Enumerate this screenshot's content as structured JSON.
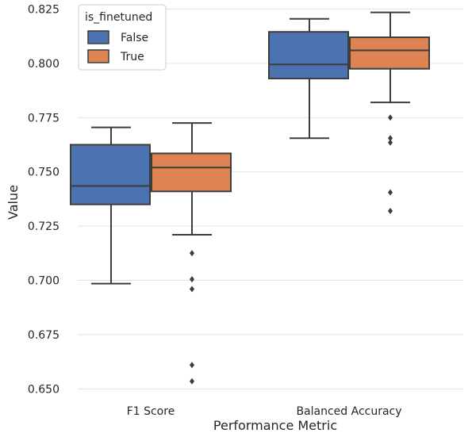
{
  "chart_data": {
    "type": "boxplot",
    "xlabel": "Performance Metric",
    "ylabel": "Value",
    "categories": [
      "F1 Score",
      "Balanced Accuracy"
    ],
    "ylim": [
      0.645,
      0.827
    ],
    "yticks": [
      "0.650",
      "0.675",
      "0.700",
      "0.725",
      "0.750",
      "0.775",
      "0.800",
      "0.825"
    ],
    "grid": "horizontal",
    "legend": {
      "title": "is_finetuned",
      "placement": "top-left"
    },
    "series": [
      {
        "name": "False",
        "color": "#4C72B0",
        "boxes": [
          {
            "category": "F1 Score",
            "whisker_low": 0.6985,
            "q1": 0.735,
            "median": 0.7435,
            "q3": 0.7625,
            "whisker_high": 0.7705,
            "outliers": []
          },
          {
            "category": "Balanced Accuracy",
            "whisker_low": 0.7655,
            "q1": 0.793,
            "median": 0.7995,
            "q3": 0.8145,
            "whisker_high": 0.8205,
            "outliers": []
          }
        ]
      },
      {
        "name": "True",
        "color": "#DD8452",
        "boxes": [
          {
            "category": "F1 Score",
            "whisker_low": 0.721,
            "q1": 0.741,
            "median": 0.752,
            "q3": 0.7585,
            "whisker_high": 0.7725,
            "outliers": [
              0.7125,
              0.7005,
              0.696,
              0.661,
              0.6535
            ]
          },
          {
            "category": "Balanced Accuracy",
            "whisker_low": 0.782,
            "q1": 0.7975,
            "median": 0.806,
            "q3": 0.812,
            "whisker_high": 0.8235,
            "outliers": [
              0.775,
              0.7655,
              0.7635,
              0.7405,
              0.732
            ]
          }
        ]
      }
    ]
  }
}
